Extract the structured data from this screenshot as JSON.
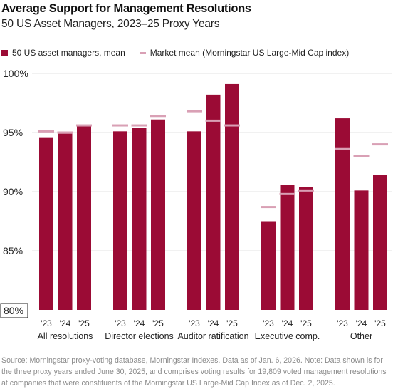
{
  "header": {
    "title": "Average Support for Management Resolutions",
    "subtitle": "50 US Asset Managers, 2023–25 Proxy Years"
  },
  "legend": {
    "managers_label": "50 US asset managers, mean",
    "market_label": "Market mean (Morningstar US Large-Mid Cap index)"
  },
  "colors": {
    "bar": "#9b0b35",
    "market_line": "#d9a0b5",
    "grid": "#e3e3e3"
  },
  "source": "Source: Morningstar proxy-voting database, Morningstar Indexes. Data as of Jan. 6, 2026. Note: Data shown is for the three proxy years ended June 30, 2025, and comprises voting results for 19,809 voted management resolutions at companies that were constituents of the Morningstar US Large-Mid Cap Index as of Dec. 2, 2025.",
  "chart_data": {
    "type": "bar",
    "ylim": [
      80,
      100
    ],
    "yticks": [
      {
        "value": 100,
        "label": "100%"
      },
      {
        "value": 95,
        "label": "95%"
      },
      {
        "value": 90,
        "label": "90%"
      },
      {
        "value": 85,
        "label": "85%"
      },
      {
        "value": 80,
        "label": "80%"
      }
    ],
    "years": [
      "'23",
      "'24",
      "'25"
    ],
    "groups": [
      {
        "name": "All resolutions",
        "managers": [
          94.6,
          94.9,
          95.6
        ],
        "market": [
          95.1,
          95.0,
          95.6
        ]
      },
      {
        "name": "Director elections",
        "managers": [
          95.1,
          95.4,
          96.1
        ],
        "market": [
          95.6,
          95.6,
          96.4
        ]
      },
      {
        "name": "Auditor ratification",
        "managers": [
          95.1,
          98.2,
          99.1
        ],
        "market": [
          96.8,
          96.0,
          95.6
        ]
      },
      {
        "name": "Executive comp.",
        "managers": [
          87.5,
          90.6,
          90.4
        ],
        "market": [
          88.7,
          89.8,
          90.1
        ]
      },
      {
        "name": "Other",
        "managers": [
          96.2,
          90.1,
          91.4
        ],
        "market": [
          93.6,
          93.0,
          94.0
        ]
      }
    ],
    "grid": true
  }
}
